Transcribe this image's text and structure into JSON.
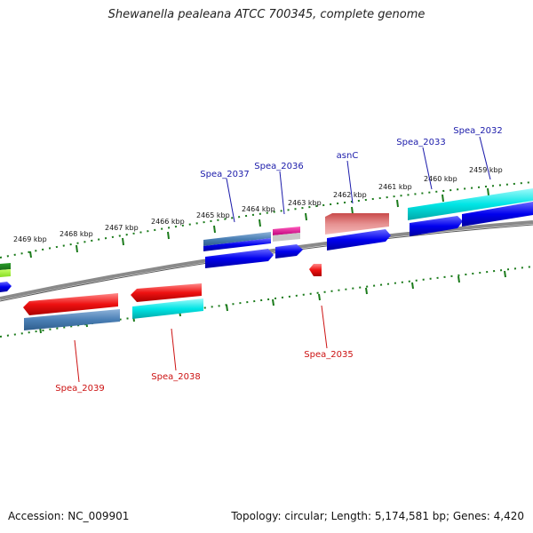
{
  "title": "Shewanella pealeana ATCC 700345, complete genome",
  "footer": {
    "accession_label": "Accession: NC_009901",
    "summary": "Topology: circular; Length: 5,174,581 bp; Genes: 4,420"
  },
  "kbp_labels": [
    "2469 kbp",
    "2468 kbp",
    "2467 kbp",
    "2466 kbp",
    "2465 kbp",
    "2464 kbp",
    "2463 kbp",
    "2462 kbp",
    "2461 kbp",
    "2460 kbp",
    "2459 kbp"
  ],
  "gene_labels": {
    "forward": [
      "Spea_2037",
      "Spea_2036",
      "asnC",
      "Spea_2033",
      "Spea_2032"
    ],
    "reverse": [
      "Spea_2039",
      "Spea_2038",
      "Spea_2035"
    ]
  },
  "colors": {
    "forward_label": "#1a1aaa",
    "reverse_label": "#cc1111",
    "tick": "#1a7a1a",
    "backbone": "#8a8a8a",
    "cds": "#0000ee",
    "red": "#ee1111",
    "cyan": "#00e5e5",
    "steelblue": "#4a7fb5",
    "pink": "#e69090",
    "magenta": "#e0108f"
  }
}
